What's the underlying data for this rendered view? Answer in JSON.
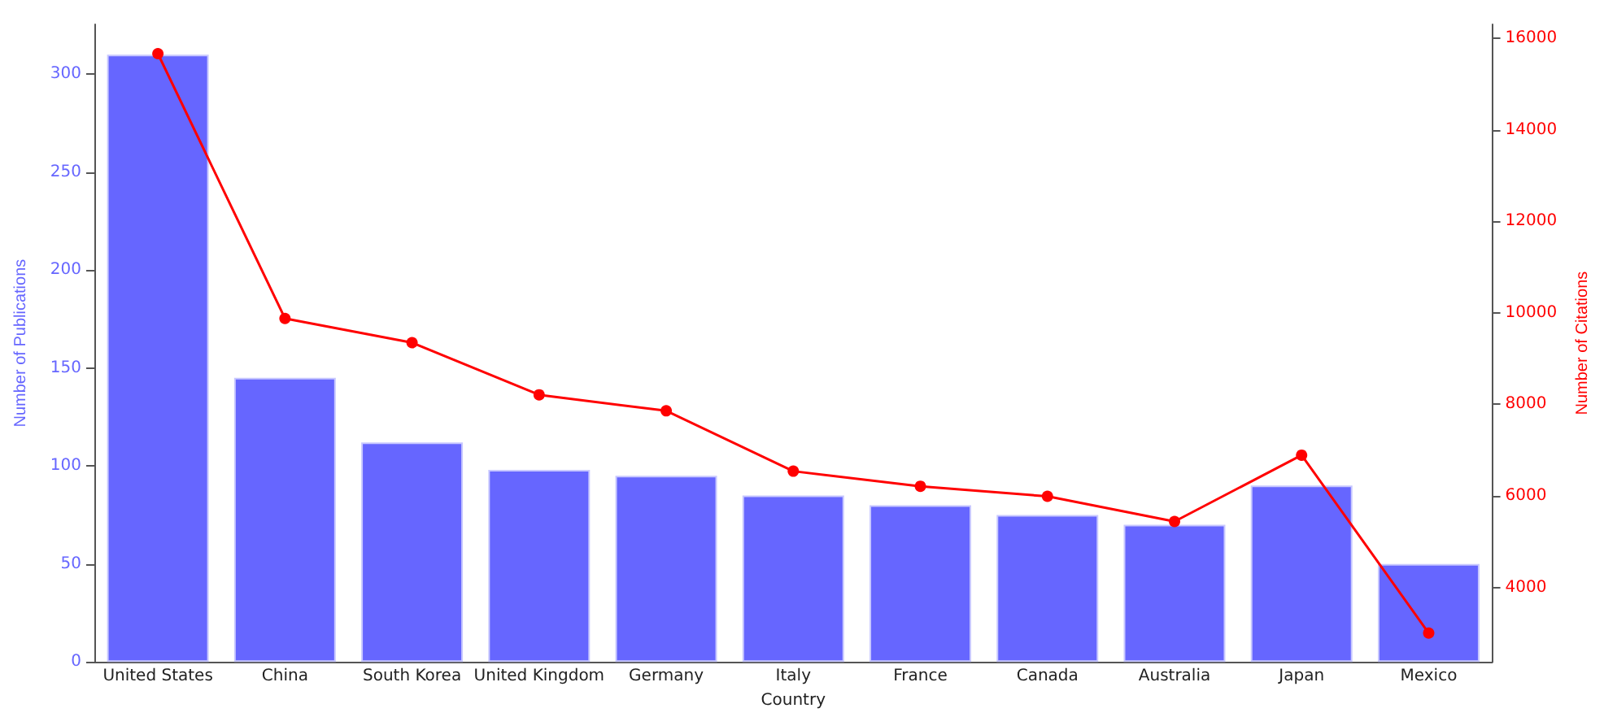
{
  "chart_data": {
    "type": "bar",
    "xlabel": "Country",
    "ylabel": "Number of Publications",
    "y2label": "Number of Citations",
    "categories": [
      "United States",
      "China",
      "South Korea",
      "United Kingdom",
      "Germany",
      "Italy",
      "France",
      "Canada",
      "Australia",
      "Japan",
      "Mexico"
    ],
    "series": [
      {
        "color": "#6666ff",
        "values": [
          310,
          145,
          112,
          98,
          95,
          85,
          80,
          75,
          70,
          90,
          50
        ]
      },
      {
        "type": "line",
        "axis": "y2",
        "color": "#ff0000",
        "values": [
          15670,
          9880,
          9350,
          8210,
          7860,
          6540,
          6210,
          5990,
          5440,
          6890,
          3000
        ]
      }
    ],
    "ylim": [
      0,
      325.5
    ],
    "yticks": [
      0,
      50,
      100,
      150,
      200,
      250,
      300
    ],
    "y2lim": [
      2370,
      16310
    ],
    "y2ticks": [
      4000,
      6000,
      8000,
      10000,
      12000,
      14000,
      16000
    ],
    "grid": false,
    "marker": "circle",
    "line_style": "solid"
  }
}
